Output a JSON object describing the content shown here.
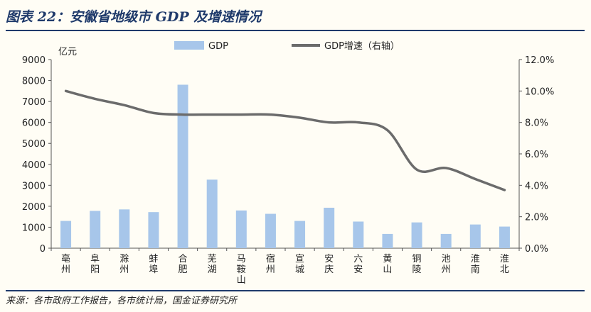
{
  "title": "图表 22：安徽省地级市 GDP 及增速情况",
  "source": "来源：各市政府工作报告，各市统计局，国金证券研究所",
  "colors": {
    "bar": "#a7c6ea",
    "line": "#6b6b6b",
    "title": "#1f3a6b",
    "rule": "#1f3a6b"
  },
  "chart_data": {
    "type": "bar+line",
    "y_left_unit": "亿元",
    "y_left_ticks": [
      "0",
      "1000",
      "2000",
      "3000",
      "4000",
      "5000",
      "6000",
      "7000",
      "8000",
      "9000"
    ],
    "y_right_ticks": [
      "0.0%",
      "2.0%",
      "4.0%",
      "6.0%",
      "8.0%",
      "10.0%",
      "12.0%"
    ],
    "ylim_left": [
      0,
      9000
    ],
    "ylim_right": [
      0,
      12
    ],
    "legend_position": "top",
    "categories": [
      "亳州",
      "阜阳",
      "滁州",
      "蚌埠",
      "合肥",
      "芜湖",
      "马鞍山",
      "宿州",
      "宣城",
      "安庆",
      "六安",
      "黄山",
      "铜陵",
      "池州",
      "淮南",
      "淮北"
    ],
    "series": [
      {
        "name": "GDP",
        "type": "bar",
        "axis": "left",
        "values": [
          1300,
          1780,
          1850,
          1720,
          7800,
          3270,
          1800,
          1640,
          1300,
          1930,
          1270,
          680,
          1230,
          680,
          1130,
          1030
        ]
      },
      {
        "name": "GDP增速（右轴）",
        "type": "line",
        "axis": "right",
        "values": [
          10.0,
          9.5,
          9.1,
          8.6,
          8.5,
          8.5,
          8.5,
          8.5,
          8.3,
          8.0,
          8.0,
          7.5,
          5.0,
          5.1,
          4.4,
          3.7
        ]
      }
    ]
  }
}
